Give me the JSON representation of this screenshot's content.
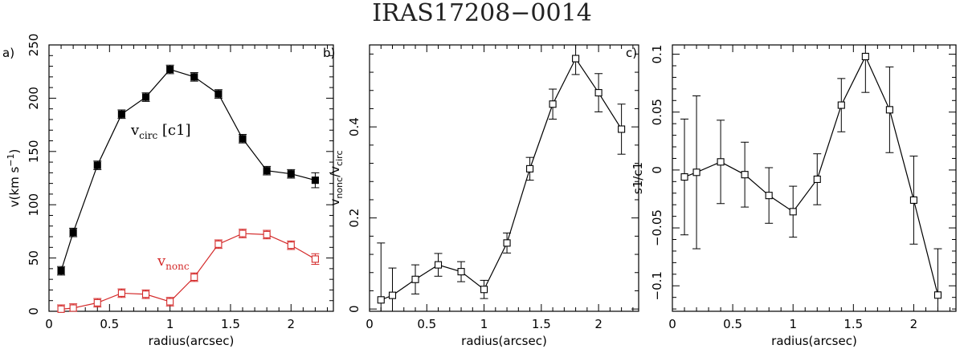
{
  "figure_title": "IRAS17208−0014",
  "chart_data": [
    {
      "type": "line",
      "panel_label": "a)",
      "xlabel": "radius(arcsec)",
      "ylabel_parts": [
        "v(km s",
        "−1",
        ")"
      ],
      "xlim": [
        0,
        2.35
      ],
      "ylim": [
        0,
        250
      ],
      "xticks": [
        0,
        0.5,
        1,
        1.5,
        2
      ],
      "xtick_labels": [
        "0",
        "0.5",
        "1",
        "1.5",
        "2"
      ],
      "yticks": [
        0,
        50,
        100,
        150,
        200,
        250
      ],
      "ytick_labels": [
        "0",
        "50",
        "100",
        "150",
        "200",
        "250"
      ],
      "series": [
        {
          "color": "#000000",
          "marker": "filled-square",
          "x": [
            0.1,
            0.2,
            0.4,
            0.6,
            0.8,
            1.0,
            1.2,
            1.4,
            1.6,
            1.8,
            2.0,
            2.2
          ],
          "y": [
            38,
            74,
            137,
            185,
            201,
            227,
            220,
            204,
            162,
            132,
            129,
            123
          ],
          "yerr": [
            4,
            4,
            4,
            4,
            4,
            4,
            4,
            4,
            4,
            4,
            4,
            7
          ]
        },
        {
          "color": "#d42a2a",
          "marker": "open-square",
          "x": [
            0.1,
            0.2,
            0.4,
            0.6,
            0.8,
            1.0,
            1.2,
            1.4,
            1.6,
            1.8,
            2.0,
            2.2
          ],
          "y": [
            2,
            3,
            8,
            17,
            16,
            9,
            32,
            63,
            73,
            72,
            62,
            49
          ],
          "yerr": [
            4,
            4,
            4,
            4,
            4,
            4,
            4,
            4,
            4,
            4,
            4,
            5
          ]
        }
      ],
      "annotations": [
        {
          "base": "v",
          "sub": "circ",
          "suffix": " [c1]",
          "color": "#000000"
        },
        {
          "base": "v",
          "sub": "nonc",
          "suffix": "",
          "color": "#d42a2a"
        }
      ]
    },
    {
      "type": "line",
      "panel_label": "b)",
      "xlabel": "radius(arcsec)",
      "ylabel_parts": [
        "v",
        "nonc",
        "/v",
        "circ"
      ],
      "xlim": [
        0,
        2.35
      ],
      "ylim": [
        -0.005,
        0.58
      ],
      "xticks": [
        0,
        0.5,
        1,
        1.5,
        2
      ],
      "xtick_labels": [
        "0",
        "0.5",
        "1",
        "1.5",
        "2"
      ],
      "yticks": [
        0,
        0.2,
        0.4
      ],
      "ytick_labels": [
        "0",
        "0.2",
        "0.4"
      ],
      "series": [
        {
          "color": "#000000",
          "marker": "open-square",
          "x": [
            0.1,
            0.2,
            0.4,
            0.6,
            0.8,
            1.0,
            1.2,
            1.4,
            1.6,
            1.8,
            2.0,
            2.2
          ],
          "y": [
            0.02,
            0.03,
            0.065,
            0.097,
            0.082,
            0.043,
            0.145,
            0.308,
            0.45,
            0.55,
            0.475,
            0.395
          ],
          "yerr": [
            0.125,
            0.06,
            0.032,
            0.025,
            0.022,
            0.02,
            0.022,
            0.025,
            0.033,
            0.035,
            0.042,
            0.055
          ]
        }
      ]
    },
    {
      "type": "line",
      "panel_label": "c)",
      "xlabel": "radius(arcsec)",
      "ylabel_parts": [
        "s1/c1"
      ],
      "xlim": [
        0,
        2.35
      ],
      "ylim": [
        -0.122,
        0.108
      ],
      "xticks": [
        0,
        0.5,
        1,
        1.5,
        2
      ],
      "xtick_labels": [
        "0",
        "0.5",
        "1",
        "1.5",
        "2"
      ],
      "yticks": [
        -0.1,
        -0.05,
        0,
        0.05,
        0.1
      ],
      "ytick_labels": [
        "−0.1",
        "−0.05",
        "0",
        "0.05",
        "0.1"
      ],
      "series": [
        {
          "color": "#000000",
          "marker": "open-square",
          "x": [
            0.1,
            0.2,
            0.4,
            0.6,
            0.8,
            1.0,
            1.2,
            1.4,
            1.6,
            1.8,
            2.0,
            2.2
          ],
          "y": [
            -0.006,
            -0.002,
            0.007,
            -0.004,
            -0.022,
            -0.036,
            -0.008,
            0.056,
            0.098,
            0.052,
            -0.026,
            -0.108
          ],
          "yerr": [
            0.05,
            0.066,
            0.036,
            0.028,
            0.024,
            0.022,
            0.022,
            0.023,
            0.031,
            0.037,
            0.038,
            0.04
          ]
        }
      ]
    }
  ]
}
